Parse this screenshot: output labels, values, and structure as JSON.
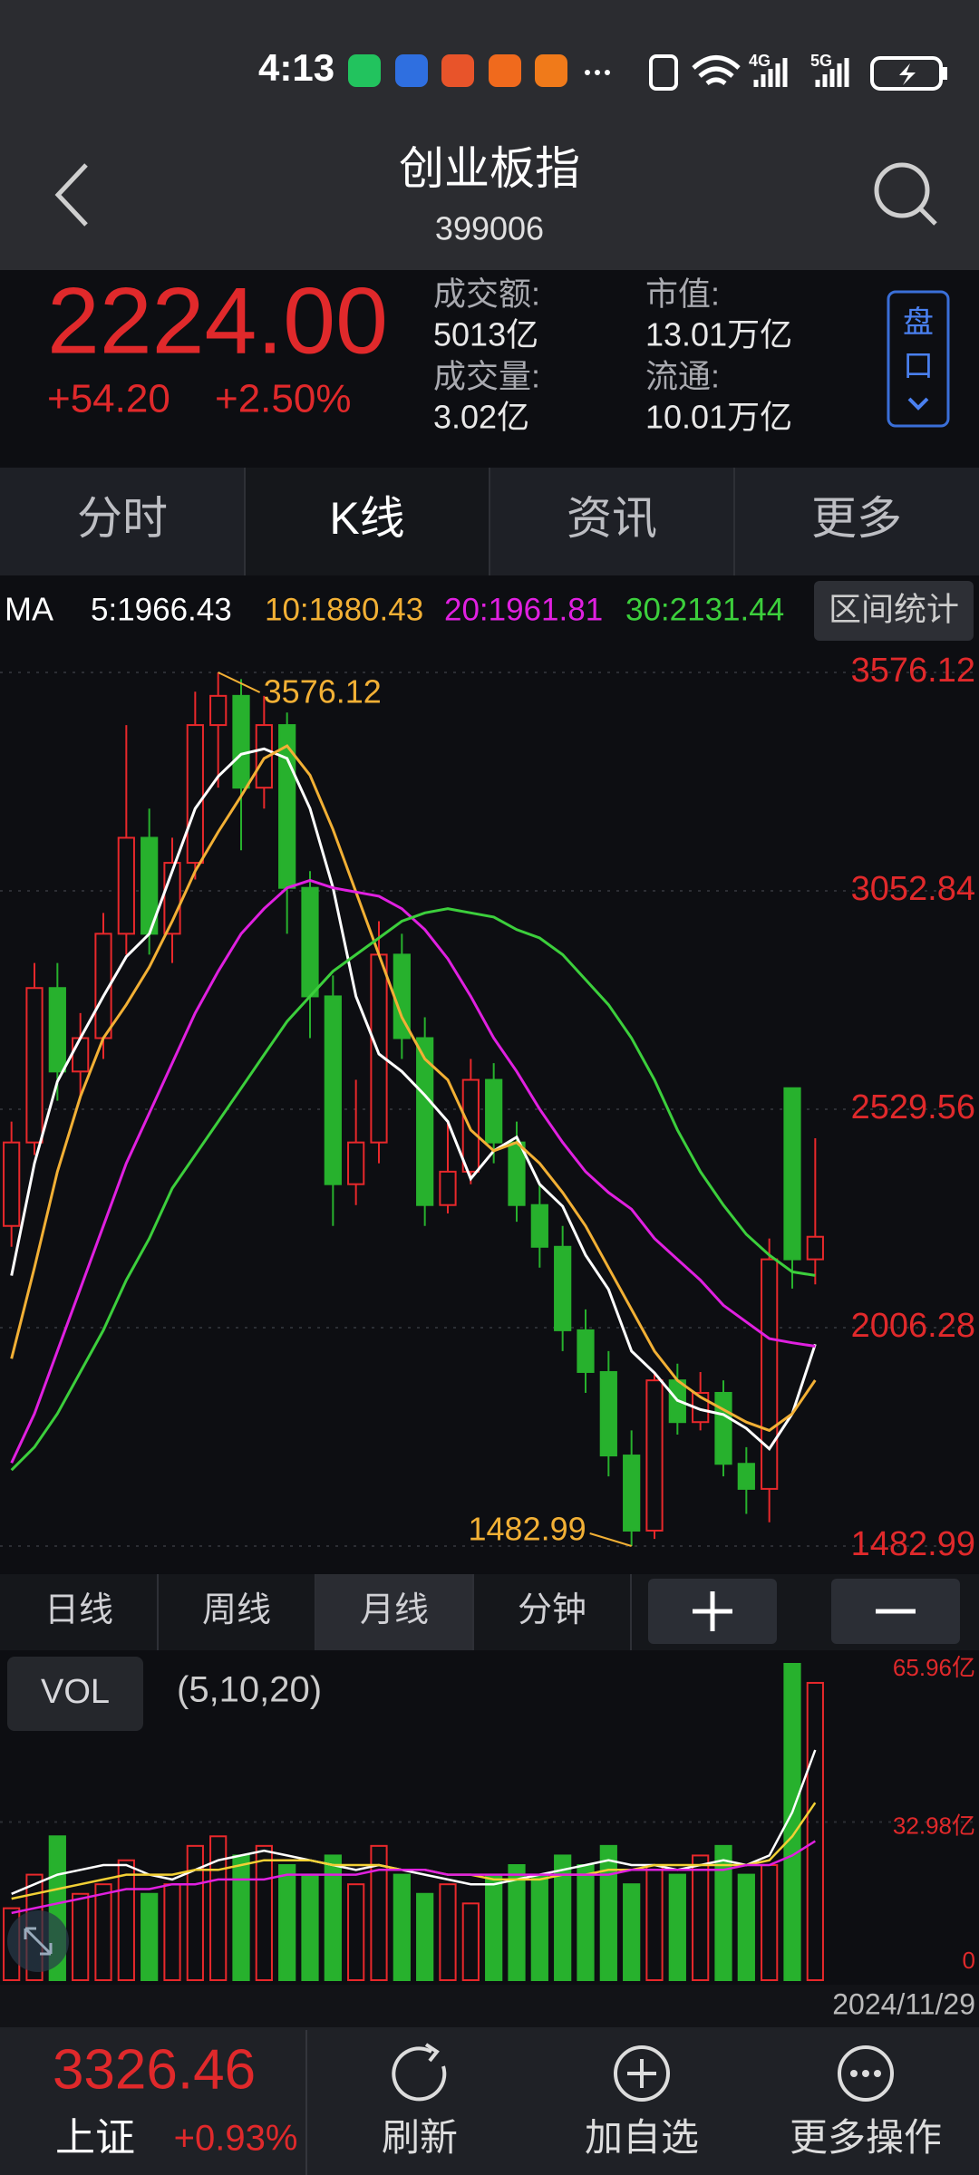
{
  "status_bar": {
    "time": "4:13",
    "network": [
      "4G",
      "5G"
    ]
  },
  "header": {
    "title": "创业板指",
    "code": "399006"
  },
  "quote": {
    "price": "2224.00",
    "change": "+54.20",
    "change_pct": "+2.50%",
    "stats": [
      {
        "label": "成交额:",
        "value": "5013亿"
      },
      {
        "label": "成交量:",
        "value": "3.02亿"
      },
      {
        "label": "市值:",
        "value": "13.01万亿"
      },
      {
        "label": "流通:",
        "value": "10.01万亿"
      }
    ],
    "button_chars": [
      "盘",
      "口"
    ]
  },
  "tabs": {
    "items": [
      "分时",
      "K线",
      "资讯",
      "更多"
    ],
    "selected": 1
  },
  "period_tabs": {
    "items": [
      "日线",
      "周线",
      "月线",
      "分钟"
    ],
    "selected": 2
  },
  "footer": {
    "index_value": "3326.46",
    "index_name": "上证",
    "index_change": "+0.93%",
    "actions": [
      "刷新",
      "加自选",
      "更多操作"
    ]
  },
  "chart_data": [
    {
      "type": "candlestick",
      "label": "MA",
      "button": "区间统计",
      "ylim": [
        1482.99,
        3576.12
      ],
      "yticks": [
        3576.12,
        3052.84,
        2529.56,
        2006.28,
        1482.99
      ],
      "grid": true,
      "up_color": "#e8282b",
      "down_color": "#27b12d",
      "annotation_color": "#f2b035",
      "open": [
        2250,
        2450,
        2820,
        2620,
        2700,
        2950,
        3180,
        2950,
        3120,
        3450,
        3520,
        3300,
        3450,
        3060,
        2800,
        2350,
        2450,
        2900,
        2700,
        2300,
        2380,
        2600,
        2450,
        2300,
        2200,
        2000,
        1900,
        1700,
        1520,
        1880,
        1780,
        1850,
        1680,
        1620,
        2580,
        2170
      ],
      "high": [
        2500,
        2880,
        2880,
        2760,
        3000,
        3450,
        3250,
        3180,
        3530,
        3576.12,
        3560,
        3520,
        3480,
        3100,
        2850,
        2600,
        2980,
        2950,
        2750,
        2500,
        2650,
        2640,
        2500,
        2350,
        2250,
        2050,
        1950,
        1760,
        1900,
        1920,
        1900,
        1880,
        1720,
        2220,
        2580,
        2460
      ],
      "low": [
        2200,
        2420,
        2550,
        2560,
        2650,
        2900,
        2900,
        2880,
        3080,
        3300,
        3150,
        3250,
        2950,
        2700,
        2250,
        2300,
        2400,
        2650,
        2250,
        2280,
        2350,
        2400,
        2260,
        2150,
        1950,
        1850,
        1650,
        1482.99,
        1500,
        1750,
        1760,
        1650,
        1560,
        1540,
        2100,
        2110
      ],
      "close": [
        2450,
        2820,
        2620,
        2700,
        2950,
        3180,
        2950,
        3120,
        3450,
        3520,
        3300,
        3450,
        3060,
        2800,
        2350,
        2450,
        2900,
        2700,
        2300,
        2380,
        2600,
        2450,
        2300,
        2200,
        2000,
        1900,
        1700,
        1520,
        1880,
        1780,
        1850,
        1680,
        1620,
        2170,
        2170,
        2224.0
      ],
      "series": [
        {
          "name": "5:1966.43",
          "color": "#ffffff",
          "values": [
            2131,
            2400,
            2596,
            2700,
            2800,
            2895,
            2950,
            3100,
            3250,
            3327,
            3380,
            3393,
            3370,
            3250,
            3061,
            2800,
            2662,
            2620,
            2563,
            2500,
            2363,
            2430,
            2463,
            2350,
            2297,
            2180,
            2098,
            1950,
            1898,
            1832,
            1810,
            1798,
            1765,
            1716,
            1800,
            1966.43
          ]
        },
        {
          "name": "10:1880.43",
          "color": "#f2b035",
          "values": [
            1932,
            2150,
            2380,
            2560,
            2700,
            2780,
            2870,
            2980,
            3100,
            3194,
            3280,
            3370,
            3400,
            3330,
            3200,
            3050,
            2900,
            2750,
            2650,
            2600,
            2480,
            2430,
            2450,
            2400,
            2330,
            2250,
            2150,
            2050,
            1950,
            1880,
            1840,
            1810,
            1780,
            1760,
            1800,
            1880.43
          ]
        },
        {
          "name": "20:1961.81",
          "color": "#e020e0",
          "values": [
            1682,
            1800,
            1950,
            2100,
            2250,
            2400,
            2520,
            2640,
            2760,
            2860,
            2950,
            3010,
            3060,
            3078,
            3060,
            3050,
            3040,
            3010,
            2960,
            2890,
            2800,
            2700,
            2620,
            2530,
            2450,
            2380,
            2330,
            2290,
            2220,
            2170,
            2120,
            2060,
            2020,
            1980,
            1970,
            1961.81
          ]
        },
        {
          "name": "30:2131.44",
          "color": "#3ccf3c",
          "values": [
            1665,
            1720,
            1800,
            1900,
            2000,
            2120,
            2220,
            2340,
            2420,
            2500,
            2580,
            2660,
            2740,
            2800,
            2860,
            2900,
            2940,
            2980,
            3000,
            3010,
            3000,
            2990,
            2960,
            2940,
            2900,
            2840,
            2780,
            2700,
            2600,
            2480,
            2380,
            2300,
            2230,
            2180,
            2140,
            2131.44
          ]
        }
      ]
    },
    {
      "type": "bar",
      "title": "VOL",
      "subtitle": "(5,10,20)",
      "last_date": "2024/11/29",
      "ylim": [
        0,
        65.96
      ],
      "yticks": [
        {
          "value": 65.96,
          "label": "65.96亿"
        },
        {
          "value": 32.98,
          "label": "32.98亿"
        },
        0
      ],
      "grid": true,
      "values": [
        15,
        22,
        30,
        18,
        20,
        25,
        18,
        20,
        28,
        30,
        26,
        28,
        24,
        22,
        26,
        20,
        28,
        22,
        18,
        20,
        16,
        22,
        24,
        22,
        26,
        24,
        28,
        20,
        24,
        22,
        26,
        28,
        22,
        24,
        65.96,
        62
      ],
      "series": [
        {
          "color": "#ffffff",
          "values": [
            18,
            20,
            22,
            23,
            24,
            24,
            22,
            21,
            23,
            25,
            26,
            27,
            26,
            25,
            24,
            23,
            24,
            23,
            22,
            21,
            20,
            20,
            21,
            22,
            23,
            24,
            25,
            24,
            24,
            23,
            24,
            25,
            24,
            26,
            35,
            48
          ]
        },
        {
          "color": "#f2d035",
          "values": [
            17,
            18,
            19,
            20,
            21,
            22,
            22,
            22,
            23,
            23,
            24,
            25,
            25,
            25,
            24,
            24,
            24,
            23,
            23,
            22,
            22,
            21,
            21,
            21,
            22,
            22,
            23,
            23,
            24,
            24,
            24,
            24,
            24,
            25,
            30,
            37
          ]
        },
        {
          "color": "#e020e0",
          "values": [
            14,
            15,
            16,
            17,
            18,
            19,
            19,
            20,
            20,
            21,
            21,
            21,
            22,
            22,
            22,
            22,
            23,
            23,
            23,
            22,
            22,
            22,
            22,
            22,
            22,
            22,
            22,
            23,
            23,
            23,
            23,
            23,
            24,
            24,
            26,
            29
          ]
        }
      ]
    }
  ]
}
